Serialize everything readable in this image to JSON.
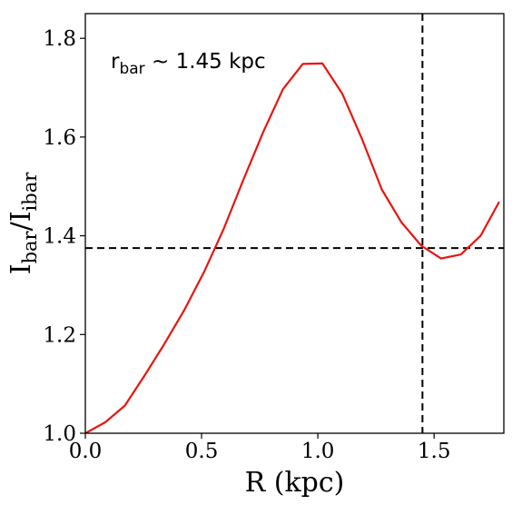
{
  "chart_data": {
    "type": "line",
    "title": "",
    "xlabel": "R (kpc)",
    "ylabel": {
      "main": "I",
      "sub1": "bar",
      "slash": "/I",
      "sub2": "ibar"
    },
    "xlim": [
      0.0,
      1.8
    ],
    "ylim": [
      1.0,
      1.85
    ],
    "xticks": [
      0.0,
      0.5,
      1.0,
      1.5
    ],
    "xtick_labels": [
      "0.0",
      "0.5",
      "1.0",
      "1.5"
    ],
    "yticks": [
      1.0,
      1.2,
      1.4,
      1.6,
      1.8
    ],
    "ytick_labels": [
      "1.0",
      "1.2",
      "1.4",
      "1.6",
      "1.8"
    ],
    "grid": false,
    "series": [
      {
        "color": "#e8150e",
        "x": [
          0.0,
          0.085,
          0.17,
          0.255,
          0.34,
          0.425,
          0.51,
          0.595,
          0.68,
          0.765,
          0.85,
          0.935,
          1.02,
          1.105,
          1.19,
          1.275,
          1.36,
          1.445,
          1.53,
          1.615,
          1.7,
          1.78
        ],
        "y": [
          1.0,
          1.022,
          1.056,
          1.117,
          1.181,
          1.249,
          1.326,
          1.414,
          1.514,
          1.61,
          1.697,
          1.748,
          1.749,
          1.688,
          1.596,
          1.494,
          1.427,
          1.38,
          1.354,
          1.362,
          1.4,
          1.469
        ]
      }
    ],
    "reference_lines": {
      "horizontal_y": 1.375,
      "vertical_x": 1.45,
      "color": "#000000",
      "style": "dashed"
    },
    "annotation": {
      "main": "r",
      "sub": "bar",
      "rest": " ~ 1.45 kpc"
    }
  }
}
